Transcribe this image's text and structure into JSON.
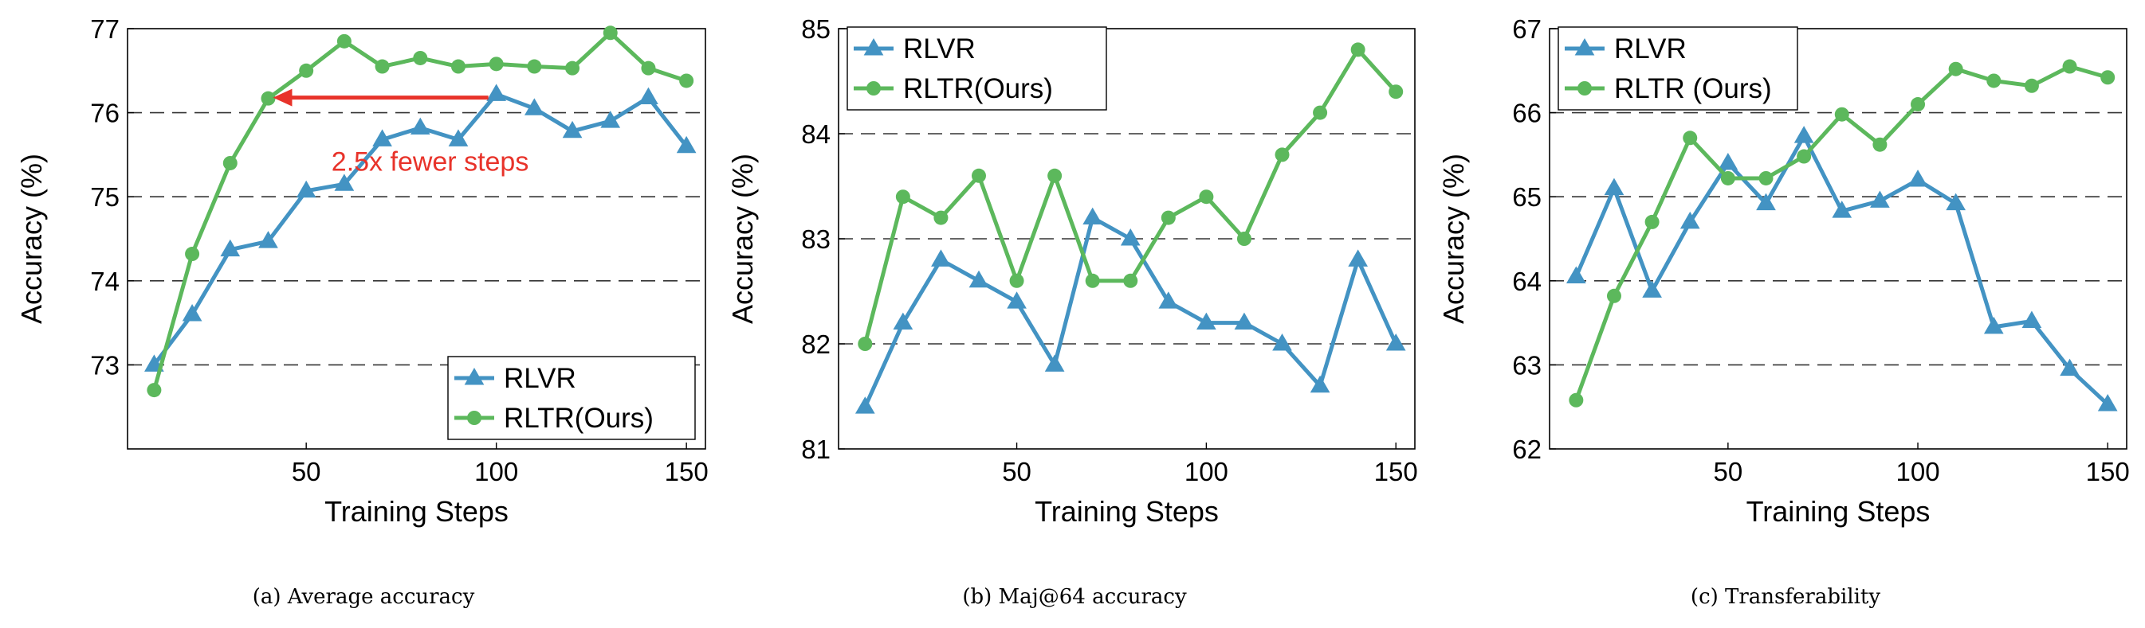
{
  "colors": {
    "rlvr": "#4393c3",
    "rltr": "#5cb85c",
    "annotation": "#e8332a",
    "grid": "#333333"
  },
  "chart_data": [
    {
      "type": "line",
      "caption": "(a) Average accuracy",
      "xlabel": "Training Steps",
      "ylabel": "Accuracy (%)",
      "xlim": [
        3,
        155
      ],
      "ylim": [
        72.0,
        77.0
      ],
      "xticks": [
        50,
        100,
        150
      ],
      "yticks": [
        73,
        74,
        75,
        76,
        77
      ],
      "grid": "horizontal-dashed",
      "legend_position": "bottom-right",
      "x": [
        10,
        20,
        30,
        40,
        50,
        60,
        70,
        80,
        90,
        100,
        110,
        120,
        130,
        140,
        150
      ],
      "series": [
        {
          "name": "RLVR",
          "marker": "triangle",
          "values": [
            73.0,
            73.6,
            74.37,
            74.47,
            75.07,
            75.15,
            75.68,
            75.82,
            75.68,
            76.22,
            76.05,
            75.78,
            75.9,
            76.18,
            75.6
          ]
        },
        {
          "name": "RLTR(Ours)",
          "marker": "circle",
          "values": [
            72.7,
            74.32,
            75.4,
            76.17,
            76.5,
            76.85,
            76.55,
            76.65,
            76.55,
            76.58,
            76.55,
            76.53,
            76.95,
            76.53,
            76.38
          ]
        }
      ],
      "annotation": {
        "text": "2.5x fewer steps",
        "arrow_from": [
          100,
          76.18
        ],
        "arrow_to": [
          40,
          76.18
        ]
      }
    },
    {
      "type": "line",
      "caption": "(b) Maj@64 accuracy",
      "xlabel": "Training Steps",
      "ylabel": "Accuracy (%)",
      "xlim": [
        3,
        155
      ],
      "ylim": [
        81.0,
        85.0
      ],
      "xticks": [
        50,
        100,
        150
      ],
      "yticks": [
        81,
        82,
        83,
        84,
        85
      ],
      "grid": "horizontal-dashed",
      "legend_position": "top-left",
      "x": [
        10,
        20,
        30,
        40,
        50,
        60,
        70,
        80,
        90,
        100,
        110,
        120,
        130,
        140,
        150
      ],
      "series": [
        {
          "name": "RLVR",
          "marker": "triangle",
          "values": [
            81.4,
            82.2,
            82.8,
            82.6,
            82.4,
            81.8,
            83.2,
            83.0,
            82.4,
            82.2,
            82.2,
            82.0,
            81.6,
            82.8,
            82.0
          ]
        },
        {
          "name": "RLTR(Ours)",
          "marker": "circle",
          "values": [
            82.0,
            83.4,
            83.2,
            83.6,
            82.6,
            83.6,
            82.6,
            82.6,
            83.2,
            83.4,
            83.0,
            83.8,
            84.2,
            84.8,
            84.4
          ]
        }
      ]
    },
    {
      "type": "line",
      "caption": "(c) Transferability",
      "xlabel": "Training Steps",
      "ylabel": "Accuracy (%)",
      "xlim": [
        3,
        155
      ],
      "ylim": [
        62.0,
        67.0
      ],
      "xticks": [
        50,
        100,
        150
      ],
      "yticks": [
        62,
        63,
        64,
        65,
        66,
        67
      ],
      "grid": "horizontal-dashed",
      "legend_position": "top-left",
      "x": [
        10,
        20,
        30,
        40,
        50,
        60,
        70,
        80,
        90,
        100,
        110,
        120,
        130,
        140,
        150
      ],
      "series": [
        {
          "name": "RLVR",
          "marker": "triangle",
          "values": [
            64.05,
            65.1,
            63.88,
            64.7,
            65.4,
            64.92,
            65.72,
            64.83,
            64.95,
            65.2,
            64.92,
            63.45,
            63.52,
            62.95,
            62.53
          ]
        },
        {
          "name": "RLTR (Ours)",
          "marker": "circle",
          "values": [
            62.58,
            63.82,
            64.7,
            65.7,
            65.22,
            65.22,
            65.48,
            65.98,
            65.62,
            66.1,
            66.52,
            66.38,
            66.32,
            66.55,
            66.42
          ]
        }
      ]
    }
  ]
}
